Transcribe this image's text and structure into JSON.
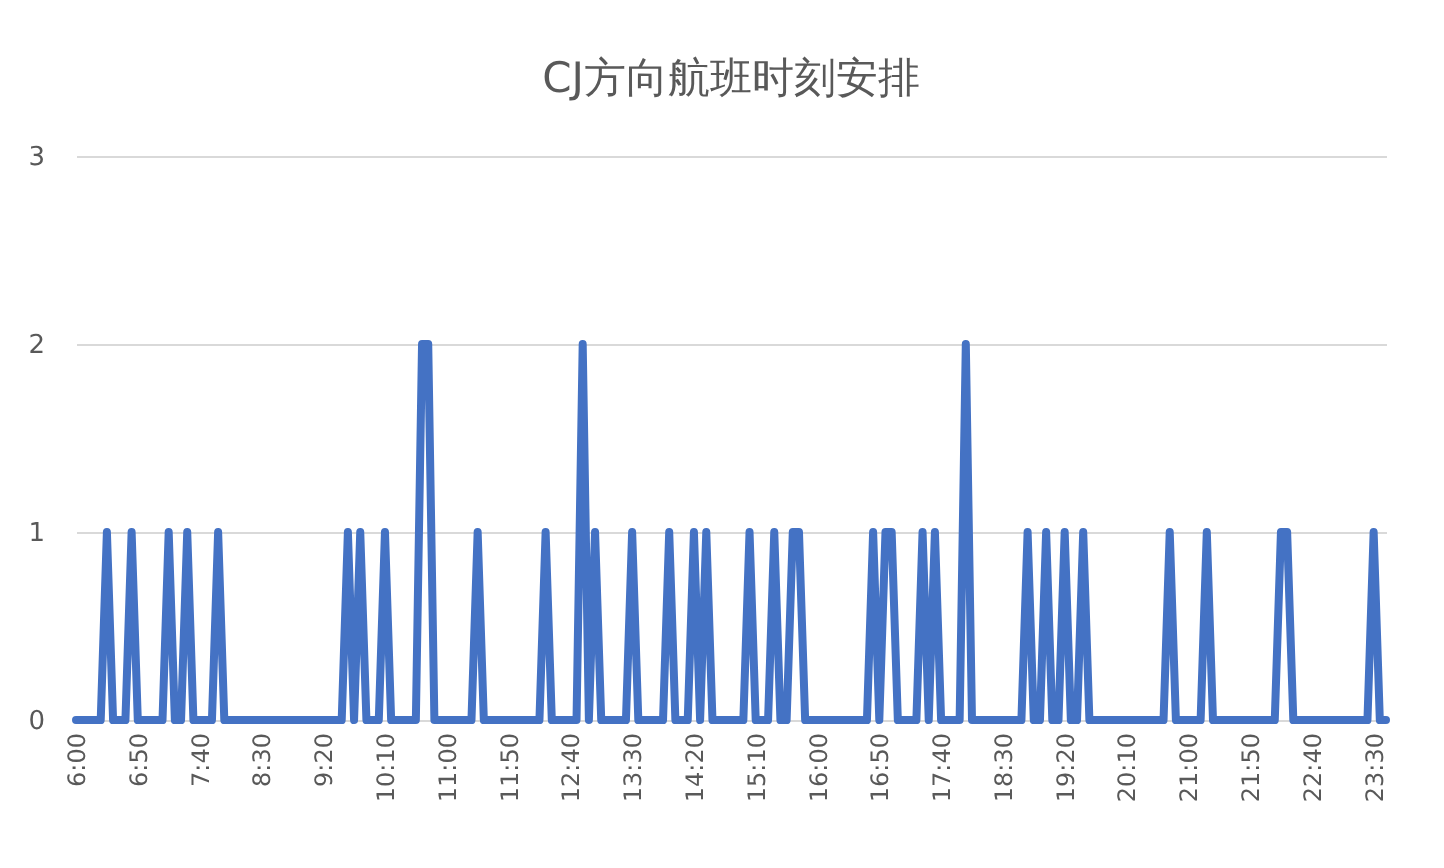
{
  "chart_data": {
    "type": "line",
    "title": "CJ方向航班时刻安排",
    "x": [
      6,
      6.3333,
      6.4167,
      6.5,
      6.6667,
      6.75,
      6.8333,
      7.1667,
      7.25,
      7.3333,
      7.4167,
      7.5,
      7.5833,
      7.8333,
      7.9167,
      8,
      9.5833,
      9.6667,
      9.75,
      9.8333,
      9.9167,
      10.0833,
      10.1667,
      10.25,
      10.5833,
      10.6667,
      10.75,
      10.8333,
      11.3333,
      11.4167,
      11.5,
      12.25,
      12.3333,
      12.4167,
      12.75,
      12.8333,
      12.9167,
      13,
      13.0833,
      13.4167,
      13.5,
      13.5833,
      13.9167,
      14,
      14.0833,
      14.25,
      14.3333,
      14.4167,
      14.5,
      14.5833,
      15,
      15.0833,
      15.1667,
      15.3333,
      15.4167,
      15.5,
      15.5833,
      15.6667,
      15.75,
      15.8333,
      16.6667,
      16.75,
      16.8333,
      16.9167,
      17,
      17.0833,
      17.3333,
      17.4167,
      17.5,
      17.5833,
      17.6667,
      17.9167,
      18,
      18.0833,
      18.75,
      18.8333,
      18.9167,
      19,
      19.0833,
      19.1667,
      19.25,
      19.3333,
      19.4167,
      19.5,
      19.5833,
      19.6667,
      20.6667,
      20.75,
      20.8333,
      21.1667,
      21.25,
      21.3333,
      22.1667,
      22.25,
      22.3333,
      22.4167,
      23.4167,
      23.5,
      23.5833,
      23.6667
    ],
    "series": [
      {
        "color": "#4472c4",
        "values": [
          0,
          0,
          1,
          0,
          0,
          1,
          0,
          0,
          1,
          0,
          0,
          1,
          0,
          0,
          1,
          0,
          0,
          1,
          0,
          1,
          0,
          0,
          1,
          0,
          0,
          2,
          2,
          0,
          0,
          1,
          0,
          0,
          1,
          0,
          0,
          2,
          0,
          1,
          0,
          0,
          1,
          0,
          0,
          1,
          0,
          0,
          1,
          0,
          1,
          0,
          0,
          1,
          0,
          0,
          1,
          0,
          0,
          1,
          1,
          0,
          0,
          1,
          0,
          1,
          1,
          0,
          0,
          1,
          0,
          1,
          0,
          0,
          2,
          0,
          0,
          1,
          0,
          0,
          1,
          0,
          0,
          1,
          0,
          0,
          1,
          0,
          0,
          1,
          0,
          0,
          1,
          0,
          0,
          1,
          1,
          0,
          0,
          1,
          0,
          0
        ]
      }
    ],
    "xlim": [
      6,
      23.6667
    ],
    "xticks": [
      {
        "value": 6,
        "label": "6:00"
      },
      {
        "value": 6.8333,
        "label": "6:50"
      },
      {
        "value": 7.6667,
        "label": "7:40"
      },
      {
        "value": 8.5,
        "label": "8:30"
      },
      {
        "value": 9.3333,
        "label": "9:20"
      },
      {
        "value": 10.1667,
        "label": "10:10"
      },
      {
        "value": 11,
        "label": "11:00"
      },
      {
        "value": 11.8333,
        "label": "11:50"
      },
      {
        "value": 12.6667,
        "label": "12:40"
      },
      {
        "value": 13.5,
        "label": "13:30"
      },
      {
        "value": 14.3333,
        "label": "14:20"
      },
      {
        "value": 15.1667,
        "label": "15:10"
      },
      {
        "value": 16,
        "label": "16:00"
      },
      {
        "value": 16.8333,
        "label": "16:50"
      },
      {
        "value": 17.6667,
        "label": "17:40"
      },
      {
        "value": 18.5,
        "label": "18:30"
      },
      {
        "value": 19.3333,
        "label": "19:20"
      },
      {
        "value": 20.1667,
        "label": "20:10"
      },
      {
        "value": 21,
        "label": "21:00"
      },
      {
        "value": 21.8333,
        "label": "21:50"
      },
      {
        "value": 22.6667,
        "label": "22:40"
      },
      {
        "value": 23.5,
        "label": "23:30"
      }
    ],
    "ylim": [
      0,
      3
    ],
    "yticks": [
      0,
      1,
      2,
      3
    ],
    "grid": "y"
  }
}
